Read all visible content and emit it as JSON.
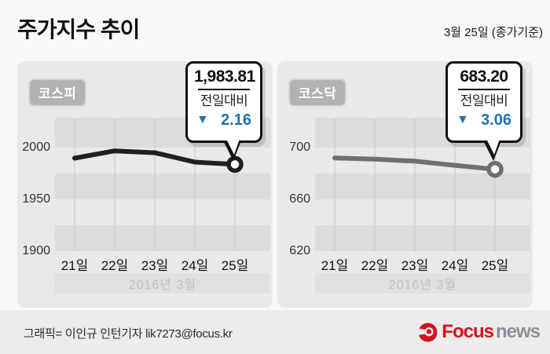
{
  "header": {
    "title": "주가지수 추이",
    "date_note": "3월 25일 (종가기준)"
  },
  "panels": [
    {
      "badge": "코스피",
      "callout": {
        "value": "1,983.81",
        "label": "전일대비",
        "change": "2.16",
        "direction": "down"
      }
    },
    {
      "badge": "코스닥",
      "callout": {
        "value": "683.20",
        "label": "전일대비",
        "change": "3.06",
        "direction": "down"
      }
    }
  ],
  "chart_data": [
    {
      "type": "line",
      "title": "코스피",
      "categories": [
        "21일",
        "22일",
        "23일",
        "24일",
        "25일"
      ],
      "values": [
        1989.8,
        1996.8,
        1995.0,
        1985.97,
        1983.81
      ],
      "last_close": 1983.81,
      "change_vs_prev_day": -2.16,
      "yticks": [
        2000,
        1950,
        1900
      ],
      "ylim": [
        1900,
        2028.8
      ],
      "band_edges": [
        2028.8,
        2000,
        1975,
        1950,
        1925,
        1900
      ],
      "x_axis_note": "2016년 3월",
      "line_color": "#231f20",
      "grid": "horizontal-bands-and-vertical-lines",
      "legend": "none"
    },
    {
      "type": "line",
      "title": "코스닥",
      "categories": [
        "21일",
        "22일",
        "23일",
        "24일",
        "25일"
      ],
      "values": [
        692.0,
        691.0,
        689.5,
        686.26,
        683.2
      ],
      "last_close": 683.2,
      "change_vs_prev_day": -3.06,
      "yticks": [
        700,
        660,
        620
      ],
      "ylim": [
        620,
        723.0
      ],
      "band_edges": [
        723.0,
        700,
        680,
        660,
        640,
        620
      ],
      "x_axis_note": "2016년 3월",
      "line_color": "#6f6f6f",
      "grid": "horizontal-bands-and-vertical-lines",
      "legend": "none"
    }
  ],
  "footer": {
    "credit": "그래픽= 이인규 인턴기자 lik7273@focus.kr",
    "logo": {
      "focus": "Focus",
      "news": "news"
    }
  },
  "colors": {
    "accent_blue": "#1f72b5",
    "panel_bg": "#e9e9e9",
    "band": "#dcdcdc",
    "gridline": "#c8c8c8",
    "kospi_line": "#231f20",
    "kosdaq_line": "#6f6f6f",
    "logo_red": "#d5121e",
    "logo_gray": "#8b919a"
  }
}
